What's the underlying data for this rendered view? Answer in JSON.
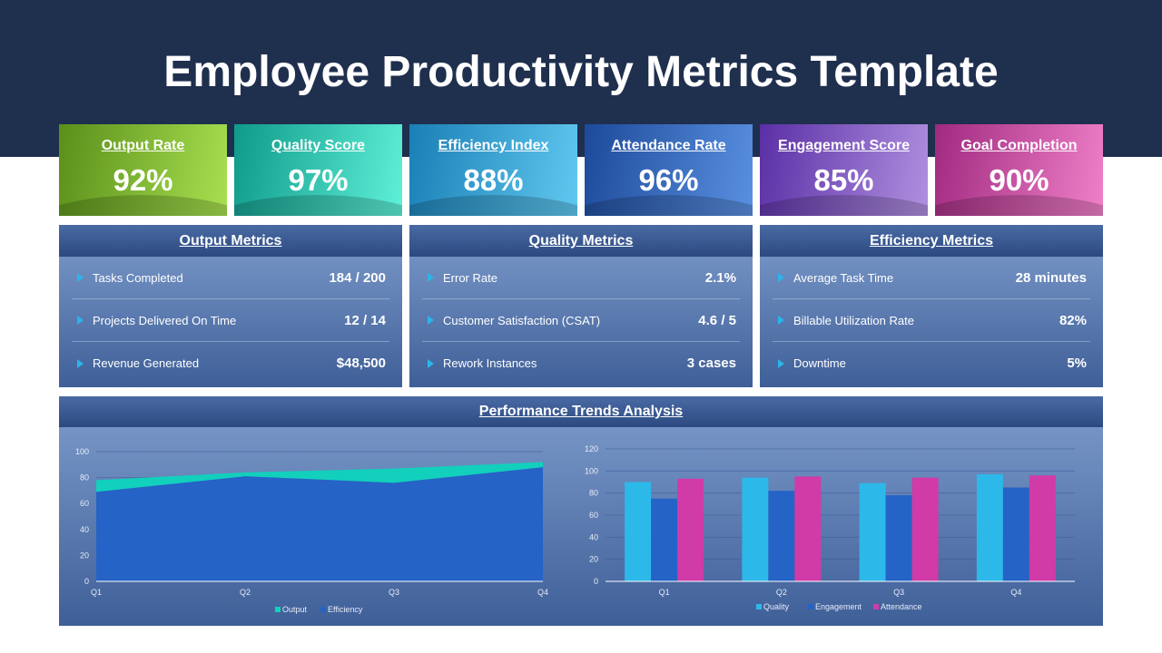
{
  "title": "Employee Productivity Metrics Template",
  "cards": [
    {
      "label": "Output Rate",
      "value": "92%",
      "c1": "#5a8f1a",
      "c2": "#a8e050"
    },
    {
      "label": "Quality Score",
      "value": "97%",
      "c1": "#0f9a8a",
      "c2": "#5ff0d8"
    },
    {
      "label": "Efficiency Index",
      "value": "88%",
      "c1": "#1a7fb5",
      "c2": "#60c8f0"
    },
    {
      "label": "Attendance Rate",
      "value": "96%",
      "c1": "#1d4a9a",
      "c2": "#5a90e0"
    },
    {
      "label": "Engagement Score",
      "value": "85%",
      "c1": "#5a2fa5",
      "c2": "#b090e0"
    },
    {
      "label": "Goal Completion",
      "value": "90%",
      "c1": "#a02a80",
      "c2": "#f080c8"
    }
  ],
  "panels": [
    {
      "title": "Output Metrics",
      "rows": [
        {
          "k": "Tasks Completed",
          "v": "184 / 200"
        },
        {
          "k": "Projects Delivered On Time",
          "v": "12 / 14"
        },
        {
          "k": "Revenue Generated",
          "v": "$48,500"
        }
      ]
    },
    {
      "title": "Quality Metrics",
      "rows": [
        {
          "k": "Error Rate",
          "v": "2.1%"
        },
        {
          "k": "Customer Satisfaction (CSAT)",
          "v": "4.6 / 5"
        },
        {
          "k": "Rework Instances",
          "v": "3 cases"
        }
      ]
    },
    {
      "title": "Efficiency Metrics",
      "rows": [
        {
          "k": "Average Task Time",
          "v": "28 minutes"
        },
        {
          "k": "Billable Utilization Rate",
          "v": "82%"
        },
        {
          "k": "Downtime",
          "v": "5%"
        }
      ]
    }
  ],
  "trends_title": "Performance Trends Analysis",
  "chart_data": [
    {
      "type": "area",
      "categories": [
        "Q1",
        "Q2",
        "Q3",
        "Q4"
      ],
      "ylim": [
        0,
        100
      ],
      "yticks": [
        0,
        20,
        40,
        60,
        80,
        100
      ],
      "legend": "bottom",
      "series": [
        {
          "name": "Output",
          "values": [
            78,
            84,
            87,
            92
          ],
          "color": "#12d0bc"
        },
        {
          "name": "Efficiency",
          "values": [
            69,
            81,
            76,
            88
          ],
          "color": "#2563c6"
        }
      ]
    },
    {
      "type": "bar",
      "categories": [
        "Q1",
        "Q2",
        "Q3",
        "Q4"
      ],
      "ylim": [
        0,
        120
      ],
      "yticks": [
        0,
        20,
        40,
        60,
        80,
        100,
        120
      ],
      "grid": true,
      "legend": "bottom",
      "series": [
        {
          "name": "Quality",
          "values": [
            90,
            94,
            89,
            97
          ],
          "color": "#2db8ea"
        },
        {
          "name": "Engagement",
          "values": [
            75,
            82,
            78,
            85
          ],
          "color": "#2563c6"
        },
        {
          "name": "Attendance",
          "values": [
            93,
            95,
            94,
            96
          ],
          "color": "#d03ba8"
        }
      ]
    }
  ]
}
